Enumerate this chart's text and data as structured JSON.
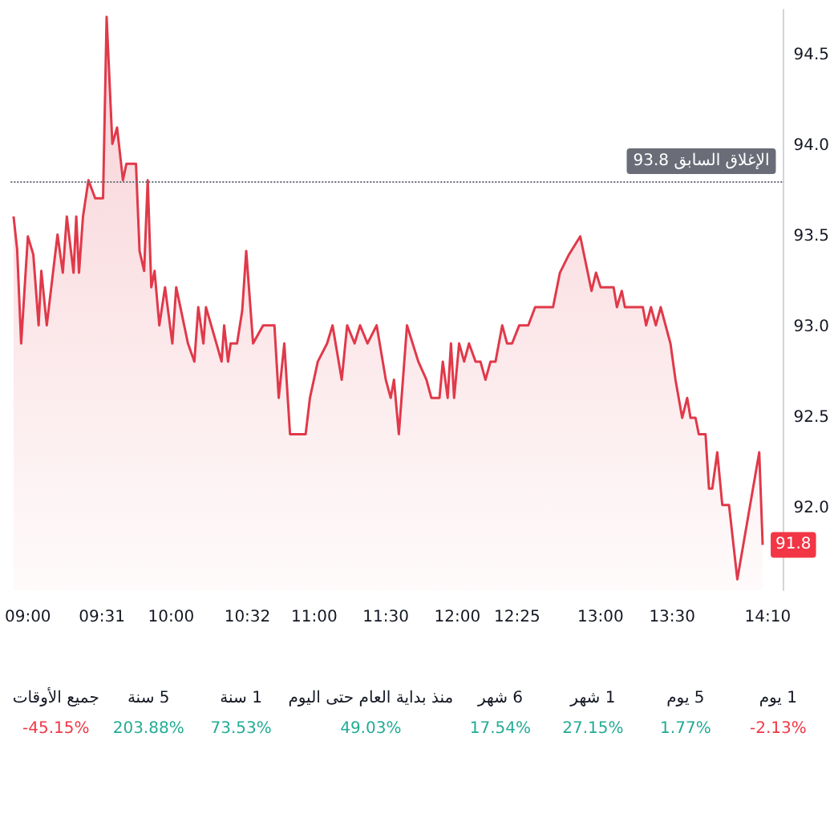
{
  "chart_data": [
    {
      "type": "area",
      "x": [
        8.9,
        8.925,
        8.953,
        9.0,
        9.038,
        9.075,
        9.094,
        9.132,
        9.207,
        9.244,
        9.272,
        9.319,
        9.338,
        9.357,
        9.385,
        9.423,
        9.47,
        9.525,
        9.55,
        9.59,
        9.623,
        9.664,
        9.688,
        9.755,
        9.78,
        9.812,
        9.837,
        9.862,
        9.885,
        9.918,
        9.958,
        10.009,
        10.036,
        10.118,
        10.163,
        10.19,
        10.226,
        10.244,
        10.317,
        10.353,
        10.371,
        10.398,
        10.416,
        10.461,
        10.497,
        10.525,
        10.573,
        10.643,
        10.722,
        10.752,
        10.791,
        10.831,
        10.94,
        10.97,
        11.025,
        11.09,
        11.128,
        11.192,
        11.23,
        11.282,
        11.32,
        11.372,
        11.436,
        11.5,
        11.534,
        11.557,
        11.591,
        11.648,
        11.727,
        11.784,
        11.818,
        11.875,
        11.898,
        11.932,
        11.955,
        11.977,
        12.012,
        12.047,
        12.081,
        12.127,
        12.161,
        12.196,
        12.231,
        12.266,
        12.313,
        12.347,
        12.382,
        12.432,
        12.495,
        12.543,
        12.668,
        12.716,
        12.779,
        12.858,
        12.937,
        12.968,
        13.0,
        13.091,
        13.114,
        13.148,
        13.17,
        13.295,
        13.318,
        13.352,
        13.386,
        13.42,
        13.488,
        13.523,
        13.57,
        13.605,
        13.628,
        13.663,
        13.686,
        13.733,
        13.757,
        13.78,
        13.815,
        13.85,
        13.897,
        13.955,
        14.108,
        14.132
      ],
      "series": [
        {
          "color": "#e0394a",
          "values": [
            93.61,
            93.43,
            92.91,
            93.5,
            93.4,
            93.01,
            93.31,
            93.01,
            93.51,
            93.3,
            93.61,
            93.3,
            93.61,
            93.3,
            93.61,
            93.81,
            93.71,
            93.71,
            94.71,
            94.01,
            94.1,
            93.81,
            93.9,
            93.9,
            93.42,
            93.31,
            93.81,
            93.22,
            93.31,
            93.01,
            93.22,
            92.91,
            93.22,
            92.91,
            92.81,
            93.11,
            92.91,
            93.11,
            92.91,
            92.81,
            93.01,
            92.81,
            92.91,
            92.91,
            93.09,
            93.42,
            92.91,
            93.01,
            93.01,
            92.61,
            92.91,
            92.41,
            92.41,
            92.61,
            92.81,
            92.91,
            93.01,
            92.71,
            93.01,
            92.91,
            93.01,
            92.91,
            93.01,
            92.71,
            92.61,
            92.71,
            92.41,
            93.01,
            92.81,
            92.71,
            92.61,
            92.61,
            92.81,
            92.61,
            92.91,
            92.61,
            92.91,
            92.81,
            92.91,
            92.81,
            92.81,
            92.71,
            92.81,
            92.81,
            93.01,
            92.91,
            92.91,
            93.01,
            93.01,
            93.11,
            93.11,
            93.3,
            93.4,
            93.5,
            93.2,
            93.3,
            93.22,
            93.22,
            93.11,
            93.2,
            93.11,
            93.11,
            93.01,
            93.11,
            93.01,
            93.11,
            92.91,
            92.71,
            92.5,
            92.61,
            92.5,
            92.5,
            92.41,
            92.41,
            92.11,
            92.11,
            92.31,
            92.02,
            92.02,
            91.61,
            92.31,
            91.8
          ]
        }
      ],
      "xlim": [
        8.88,
        14.28
      ],
      "xticks": [
        {
          "value": 9,
          "label": "09:00"
        },
        {
          "value": 9.517,
          "label": "09:31"
        },
        {
          "value": 10,
          "label": "10:00"
        },
        {
          "value": 10.533,
          "label": "10:32"
        },
        {
          "value": 11,
          "label": "11:00"
        },
        {
          "value": 11.5,
          "label": "11:30"
        },
        {
          "value": 12,
          "label": "12:00"
        },
        {
          "value": 12.417,
          "label": "12:25"
        },
        {
          "value": 13,
          "label": "13:00"
        },
        {
          "value": 13.5,
          "label": "13:30"
        },
        {
          "value": 14.167,
          "label": "14:10"
        }
      ],
      "ylim": [
        91.55,
        94.75
      ],
      "yticks": [
        {
          "value": 92,
          "label": "92.0"
        },
        {
          "value": 92.5,
          "label": "92.5"
        },
        {
          "value": 93,
          "label": "93.0"
        },
        {
          "value": 93.5,
          "label": "93.5"
        },
        {
          "value": 94,
          "label": "94.0"
        },
        {
          "value": 94.5,
          "label": "94.5"
        }
      ],
      "ref_lines": [
        {
          "axis": "y",
          "value": 93.8,
          "label": "الإغلاق السابق 93.8",
          "color": "#6a6d78",
          "line_style": "dotted"
        }
      ],
      "annotations": [
        {
          "text": "91.8",
          "x": 14.132,
          "y": 91.8
        }
      ],
      "tick_labels": true
    },
    {
      "type": "other",
      "categories": [
        "جميع الأوقات",
        "5 سنة",
        "1 سنة",
        "منذ بداية العام حتى اليوم",
        "6 شهر",
        "1 شهر",
        "5 يوم",
        "1 يوم"
      ],
      "value_labels": [
        "-45.15%",
        "203.88%",
        "73.53%",
        "49.03%",
        "17.54%",
        "27.15%",
        "1.77%",
        "-2.13%"
      ],
      "colors": [
        "#f23645",
        "#22ab94",
        "#22ab94",
        "#22ab94",
        "#22ab94",
        "#22ab94",
        "#22ab94",
        "#f23645"
      ]
    }
  ]
}
